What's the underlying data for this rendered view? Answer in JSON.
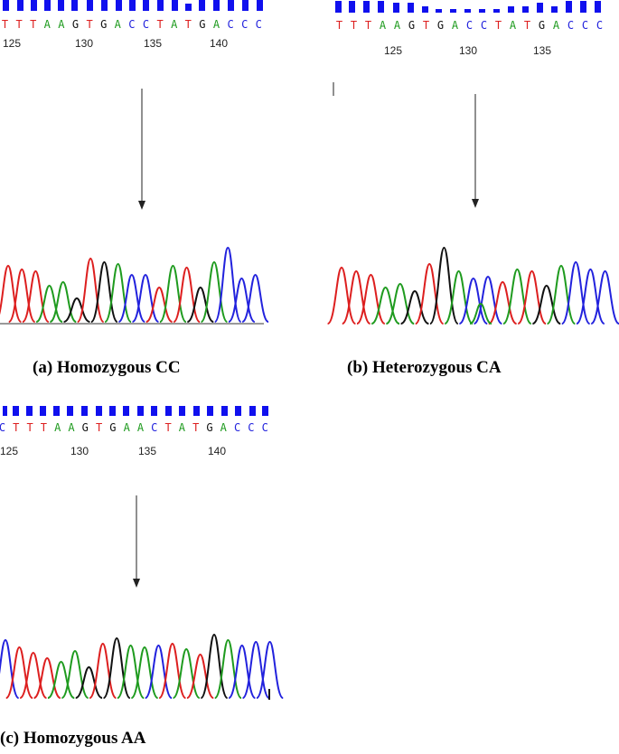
{
  "colors": {
    "A": "#1f9b1f",
    "C": "#2222dd",
    "G": "#111111",
    "T": "#dd1f1f",
    "quality_bar": "#1010ee"
  },
  "panels": [
    {
      "id": "a",
      "sequence": "TTTAAGTGACCTATGACCC",
      "positions": [
        "125",
        "130",
        "135",
        "140"
      ],
      "caption": "(a) Homozygous CC"
    },
    {
      "id": "b",
      "sequence": "TTTAAGTGACCTATGACCC",
      "positions": [
        "125",
        "130",
        "135"
      ],
      "caption": "(b) Heterozygous CA"
    },
    {
      "id": "c",
      "sequence": "CTTTAAGTGAACTATGACCC",
      "positions": [
        "125",
        "130",
        "135",
        "140"
      ],
      "caption": "(c) Homozygous AA"
    }
  ]
}
